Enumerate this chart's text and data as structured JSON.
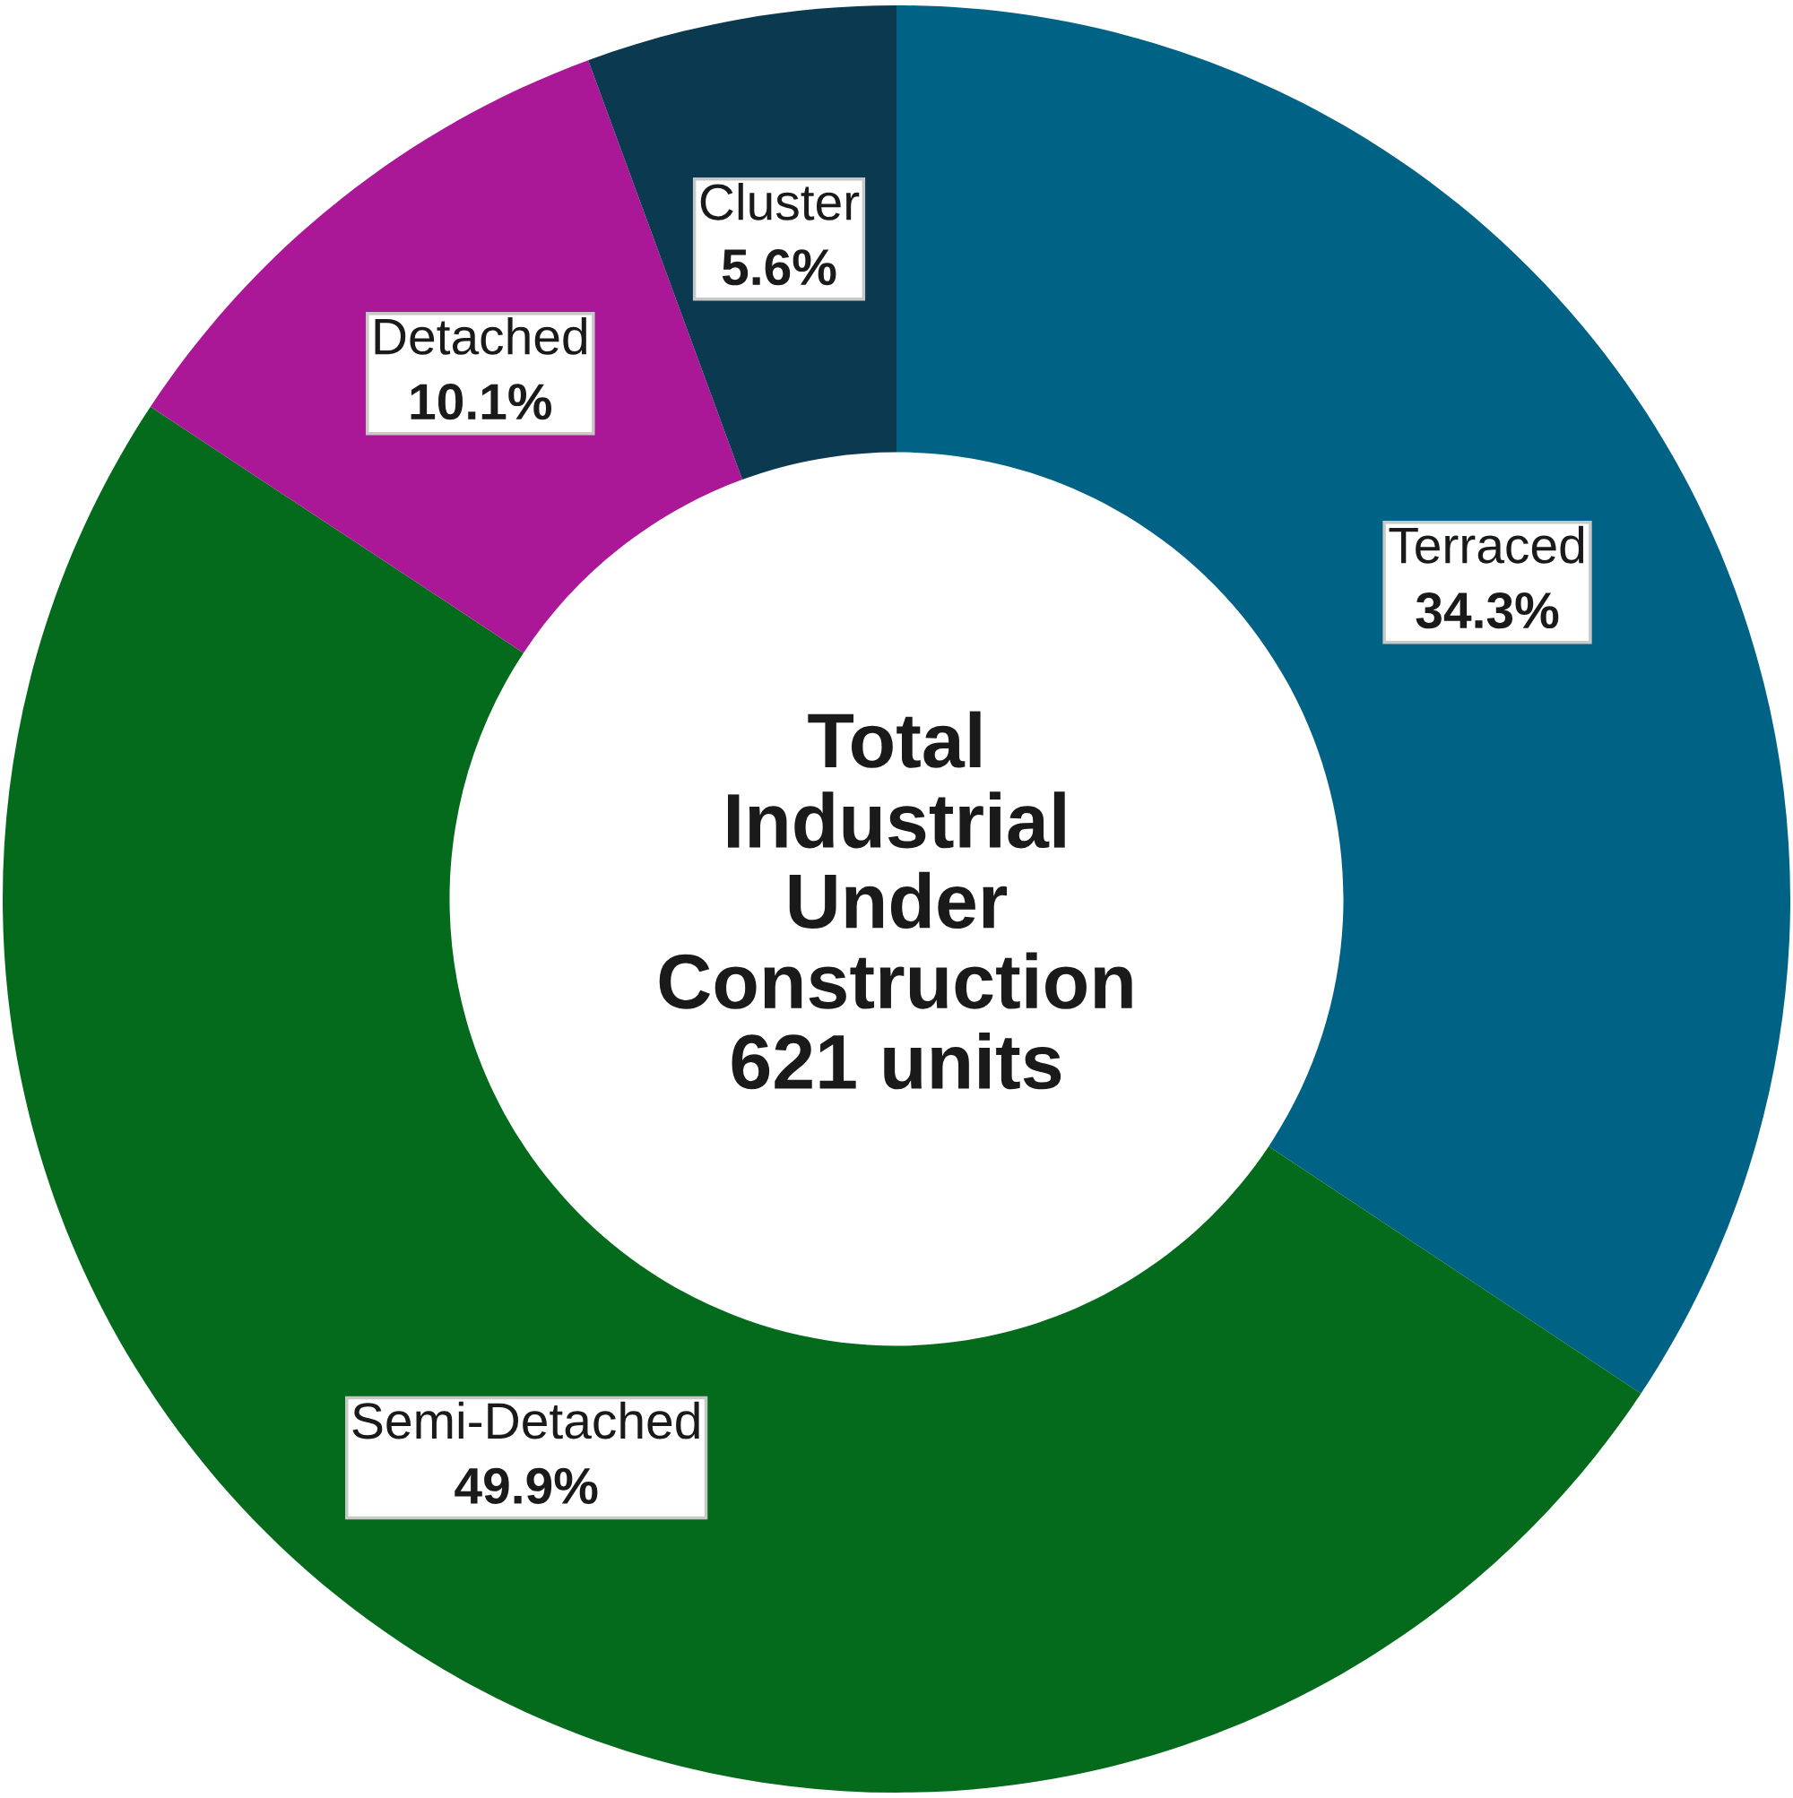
{
  "chart_data": {
    "type": "donut",
    "title": "Total\nIndustrial\nUnder\nConstruction\n621 units",
    "categories": [
      "Terraced",
      "Semi-Detached",
      "Detached",
      "Cluster"
    ],
    "values": [
      34.3,
      49.9,
      10.1,
      5.6
    ],
    "colors": [
      "#006385",
      "#036b1b",
      "#ab1897",
      "#0b3a50"
    ],
    "value_labels": [
      "34.3%",
      "49.9%",
      "10.1%",
      "5.6%"
    ]
  }
}
